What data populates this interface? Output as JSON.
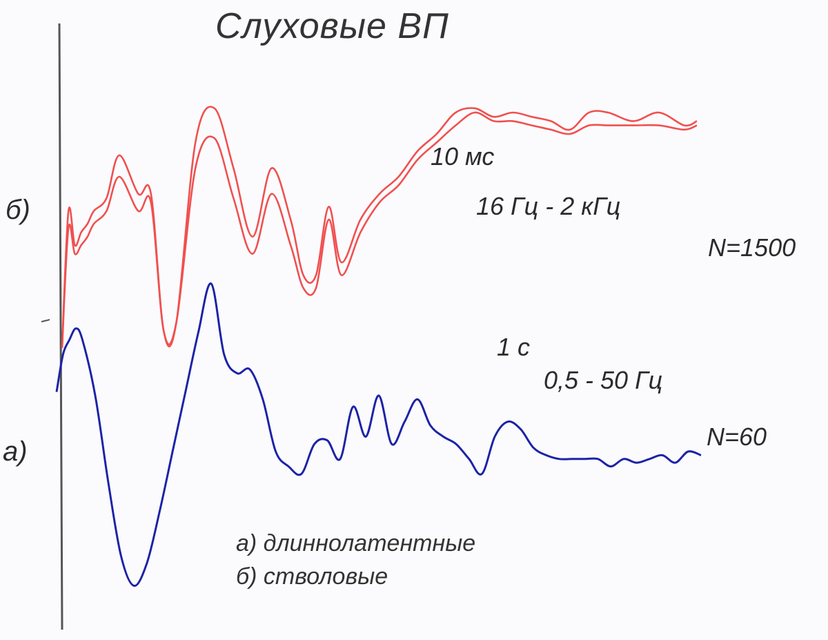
{
  "title": "Слуховые ВП",
  "labels": {
    "b": "б)",
    "a": "а)"
  },
  "annotations": {
    "b_time": "10 мс",
    "b_filter": "16 Гц - 2 кГц",
    "b_n": "N=1500",
    "a_time": "1 с",
    "a_filter": "0,5 - 50 Гц",
    "a_n": "N=60"
  },
  "legend": {
    "a": "а) длиннолатентные",
    "b": "б) стволовые"
  },
  "colors": {
    "brainstem": "#f0504f",
    "long_latency": "#1c23a6",
    "axis": "#555555"
  },
  "chart_data": {
    "type": "line",
    "title": "Слуховые ВП",
    "xlabel": "",
    "ylabel": "",
    "grid": false,
    "series": [
      {
        "name": "б) стволовые (trace 1)",
        "x": [
          0,
          1,
          2,
          3,
          4,
          5,
          7,
          9,
          12,
          14,
          16,
          18,
          21,
          24,
          27,
          30,
          33,
          36,
          38,
          40,
          42,
          44,
          47,
          50,
          53,
          56,
          59,
          62,
          65,
          68,
          71,
          74,
          77,
          80,
          83,
          86,
          90,
          94,
          98,
          100
        ],
        "y": [
          -2.0,
          1.2,
          0.4,
          0.7,
          0.9,
          1.2,
          1.5,
          2.5,
          1.6,
          1.6,
          -1.6,
          -1.4,
          2.8,
          3.6,
          2.2,
          0.6,
          2.2,
          1.0,
          -0.3,
          -0.3,
          1.3,
          0.0,
          1.0,
          1.6,
          2.0,
          2.6,
          3.0,
          3.5,
          3.6,
          3.4,
          3.5,
          3.4,
          3.3,
          3.1,
          3.5,
          3.5,
          3.3,
          3.5,
          3.2,
          3.3
        ]
      },
      {
        "name": "б) стволовые (trace 2)",
        "x": [
          0,
          1,
          2,
          3,
          4,
          5,
          7,
          9,
          12,
          14,
          16,
          18,
          21,
          24,
          27,
          30,
          33,
          36,
          38,
          40,
          42,
          44,
          47,
          50,
          53,
          56,
          59,
          62,
          65,
          68,
          71,
          74,
          77,
          80,
          83,
          86,
          90,
          94,
          98,
          100
        ],
        "y": [
          -2.0,
          0.8,
          0.2,
          0.4,
          0.6,
          0.9,
          1.2,
          2.0,
          1.2,
          1.4,
          -1.6,
          -1.4,
          2.2,
          2.9,
          1.5,
          0.2,
          1.6,
          0.4,
          -0.6,
          -0.6,
          1.0,
          -0.3,
          0.7,
          1.4,
          1.8,
          2.4,
          2.8,
          3.2,
          3.5,
          3.3,
          3.3,
          3.2,
          3.1,
          3.0,
          3.2,
          3.2,
          3.2,
          3.2,
          3.1,
          3.2
        ]
      },
      {
        "name": "а) длиннолатентные",
        "x": [
          0,
          1,
          2,
          3,
          4,
          6,
          8,
          10,
          12,
          14,
          16,
          18,
          20,
          22,
          24,
          26,
          28,
          30,
          32,
          34,
          36,
          38,
          40,
          42,
          44,
          46,
          48,
          50,
          52,
          54,
          56,
          58,
          60,
          62,
          64,
          66,
          68,
          70,
          72,
          74,
          76,
          78,
          80,
          82,
          84,
          86,
          88,
          90,
          92,
          94,
          96,
          98,
          100
        ],
        "y": [
          0.6,
          1.6,
          2.0,
          2.3,
          2.0,
          0.5,
          -1.8,
          -3.8,
          -4.6,
          -4.0,
          -2.6,
          -1.0,
          0.6,
          2.2,
          3.5,
          1.6,
          1.1,
          1.2,
          0.4,
          -1.0,
          -1.4,
          -1.6,
          -0.8,
          -0.7,
          -1.2,
          0.2,
          -0.6,
          0.5,
          -0.8,
          -0.2,
          0.4,
          -0.3,
          -0.6,
          -0.8,
          -1.2,
          -1.6,
          -0.6,
          -0.2,
          -0.4,
          -0.9,
          -1.1,
          -1.2,
          -1.2,
          -1.2,
          -1.2,
          -1.4,
          -1.2,
          -1.3,
          -1.2,
          -1.1,
          -1.3,
          -1.0,
          -1.1
        ]
      }
    ]
  }
}
